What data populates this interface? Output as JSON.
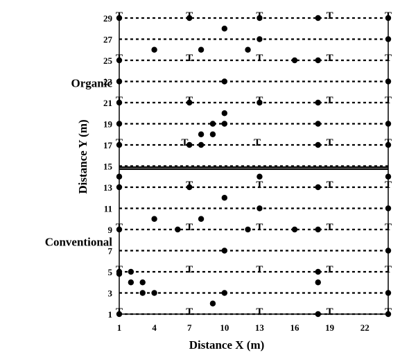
{
  "chart_data": {
    "type": "scatter",
    "xlabel": "Distance X (m)",
    "ylabel": "Distance Y (m)",
    "xlim": [
      1,
      24
    ],
    "ylim": [
      1,
      29
    ],
    "x_ticks": [
      1,
      4,
      7,
      10,
      13,
      16,
      19,
      22
    ],
    "y_ticks": [
      1,
      3,
      5,
      7,
      9,
      11,
      13,
      15,
      17,
      19,
      21,
      23,
      25,
      27,
      29
    ],
    "grid": "dotted horizontal lines at odd y values",
    "divider_y": 14.8,
    "region_labels": [
      {
        "text": "Organic",
        "y": 23
      },
      {
        "text": "Conventional",
        "y": 8
      }
    ],
    "t_label": "T",
    "t_points": [
      {
        "x": 1,
        "y": 29
      },
      {
        "x": 7,
        "y": 29
      },
      {
        "x": 13,
        "y": 29
      },
      {
        "x": 19,
        "y": 29
      },
      {
        "x": 24,
        "y": 29
      },
      {
        "x": 1,
        "y": 25
      },
      {
        "x": 7,
        "y": 25
      },
      {
        "x": 13,
        "y": 25
      },
      {
        "x": 19,
        "y": 25
      },
      {
        "x": 24,
        "y": 25
      },
      {
        "x": 1,
        "y": 21
      },
      {
        "x": 7,
        "y": 21
      },
      {
        "x": 13,
        "y": 21
      },
      {
        "x": 19,
        "y": 21
      },
      {
        "x": 24,
        "y": 21
      },
      {
        "x": 1,
        "y": 17
      },
      {
        "x": 6.6,
        "y": 17
      },
      {
        "x": 12.8,
        "y": 17
      },
      {
        "x": 19,
        "y": 17
      },
      {
        "x": 24,
        "y": 17
      },
      {
        "x": 7,
        "y": 13
      },
      {
        "x": 13,
        "y": 13
      },
      {
        "x": 19,
        "y": 13
      },
      {
        "x": 24,
        "y": 13
      },
      {
        "x": 1,
        "y": 9
      },
      {
        "x": 7,
        "y": 9
      },
      {
        "x": 13,
        "y": 9
      },
      {
        "x": 19,
        "y": 9
      },
      {
        "x": 24,
        "y": 9
      },
      {
        "x": 1,
        "y": 5
      },
      {
        "x": 7,
        "y": 5
      },
      {
        "x": 13,
        "y": 5
      },
      {
        "x": 19,
        "y": 5
      },
      {
        "x": 24,
        "y": 5
      },
      {
        "x": 1,
        "y": 1
      },
      {
        "x": 7,
        "y": 1
      },
      {
        "x": 13,
        "y": 1
      },
      {
        "x": 19,
        "y": 1
      },
      {
        "x": 24,
        "y": 1
      }
    ],
    "dot_points": [
      {
        "x": 1,
        "y": 29
      },
      {
        "x": 7,
        "y": 29
      },
      {
        "x": 13,
        "y": 29
      },
      {
        "x": 18,
        "y": 29
      },
      {
        "x": 24,
        "y": 29
      },
      {
        "x": 10,
        "y": 28
      },
      {
        "x": 13,
        "y": 27
      },
      {
        "x": 24,
        "y": 27
      },
      {
        "x": 4,
        "y": 26
      },
      {
        "x": 8,
        "y": 26
      },
      {
        "x": 12,
        "y": 26
      },
      {
        "x": 1,
        "y": 25
      },
      {
        "x": 16,
        "y": 25
      },
      {
        "x": 18,
        "y": 25
      },
      {
        "x": 1,
        "y": 23
      },
      {
        "x": 10,
        "y": 23
      },
      {
        "x": 24,
        "y": 23
      },
      {
        "x": 1,
        "y": 21
      },
      {
        "x": 7,
        "y": 21
      },
      {
        "x": 13,
        "y": 21
      },
      {
        "x": 18,
        "y": 21
      },
      {
        "x": 10,
        "y": 20
      },
      {
        "x": 1,
        "y": 19
      },
      {
        "x": 9,
        "y": 19
      },
      {
        "x": 10,
        "y": 19
      },
      {
        "x": 18,
        "y": 19
      },
      {
        "x": 24,
        "y": 19
      },
      {
        "x": 8,
        "y": 18
      },
      {
        "x": 9,
        "y": 18
      },
      {
        "x": 1,
        "y": 17
      },
      {
        "x": 7,
        "y": 17
      },
      {
        "x": 8,
        "y": 17
      },
      {
        "x": 18,
        "y": 17
      },
      {
        "x": 24,
        "y": 17
      },
      {
        "x": 1,
        "y": 14
      },
      {
        "x": 13,
        "y": 14
      },
      {
        "x": 24,
        "y": 14
      },
      {
        "x": 1,
        "y": 13
      },
      {
        "x": 7,
        "y": 13
      },
      {
        "x": 18,
        "y": 13
      },
      {
        "x": 10,
        "y": 12
      },
      {
        "x": 13,
        "y": 11
      },
      {
        "x": 24,
        "y": 11
      },
      {
        "x": 4,
        "y": 10
      },
      {
        "x": 8,
        "y": 10
      },
      {
        "x": 1,
        "y": 9
      },
      {
        "x": 6,
        "y": 9
      },
      {
        "x": 12,
        "y": 9
      },
      {
        "x": 16,
        "y": 9
      },
      {
        "x": 18,
        "y": 9
      },
      {
        "x": 10,
        "y": 7
      },
      {
        "x": 24,
        "y": 7
      },
      {
        "x": 1,
        "y": 5
      },
      {
        "x": 2,
        "y": 5
      },
      {
        "x": 18,
        "y": 5
      },
      {
        "x": 1,
        "y": 4.8
      },
      {
        "x": 2,
        "y": 4
      },
      {
        "x": 3,
        "y": 4
      },
      {
        "x": 18,
        "y": 4
      },
      {
        "x": 3,
        "y": 3
      },
      {
        "x": 4,
        "y": 3
      },
      {
        "x": 10,
        "y": 3
      },
      {
        "x": 24,
        "y": 3
      },
      {
        "x": 9,
        "y": 2
      },
      {
        "x": 1,
        "y": 1
      },
      {
        "x": 18,
        "y": 1
      },
      {
        "x": 24,
        "y": 1
      }
    ]
  }
}
